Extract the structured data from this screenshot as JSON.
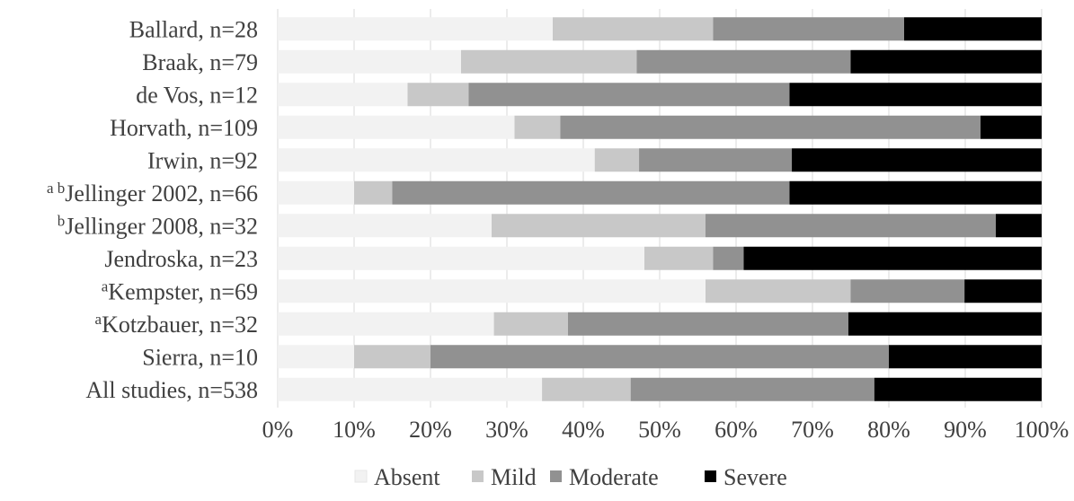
{
  "chart_data": {
    "type": "bar",
    "orientation": "horizontal",
    "stacked": "percent",
    "categories": [
      {
        "sup": "",
        "label": "Ballard, n=28"
      },
      {
        "sup": "",
        "label": "Braak, n=79"
      },
      {
        "sup": "",
        "label": "de Vos, n=12"
      },
      {
        "sup": "",
        "label": "Horvath, n=109"
      },
      {
        "sup": "",
        "label": "Irwin, n=92"
      },
      {
        "sup": "a b",
        "label": "Jellinger 2002, n=66"
      },
      {
        "sup": "b",
        "label": "Jellinger 2008, n=32"
      },
      {
        "sup": "",
        "label": "Jendroska, n=23"
      },
      {
        "sup": "a",
        "label": "Kempster, n=69"
      },
      {
        "sup": "a",
        "label": "Kotzbauer, n=32"
      },
      {
        "sup": "",
        "label": "Sierra, n=10"
      },
      {
        "sup": "",
        "label": "All studies, n=538"
      }
    ],
    "series": [
      {
        "name": "Absent",
        "color": "#f2f2f2",
        "values": [
          36,
          24,
          17,
          31,
          41.5,
          10,
          28,
          48,
          56,
          28.3,
          10,
          34.6
        ]
      },
      {
        "name": "Mild",
        "color": "#c8c8c8",
        "values": [
          21,
          23,
          8,
          6,
          5.8,
          5,
          28,
          9,
          19,
          9.7,
          10,
          11.6
        ]
      },
      {
        "name": "Moderate",
        "color": "#919191",
        "values": [
          25,
          28,
          42,
          55,
          20,
          52,
          38,
          4,
          14.9,
          36.7,
          60,
          31.9
        ]
      },
      {
        "name": "Severe",
        "color": "#000000",
        "values": [
          18,
          25,
          33,
          8,
          32.7,
          33,
          6,
          39,
          10.1,
          25.3,
          20,
          21.9
        ]
      }
    ],
    "x_ticks": [
      "0%",
      "10%",
      "20%",
      "30%",
      "40%",
      "50%",
      "60%",
      "70%",
      "80%",
      "90%",
      "100%"
    ],
    "xlim": [
      0,
      100
    ],
    "grid": true,
    "legend_position": "bottom",
    "title": "",
    "xlabel": "",
    "ylabel": ""
  }
}
